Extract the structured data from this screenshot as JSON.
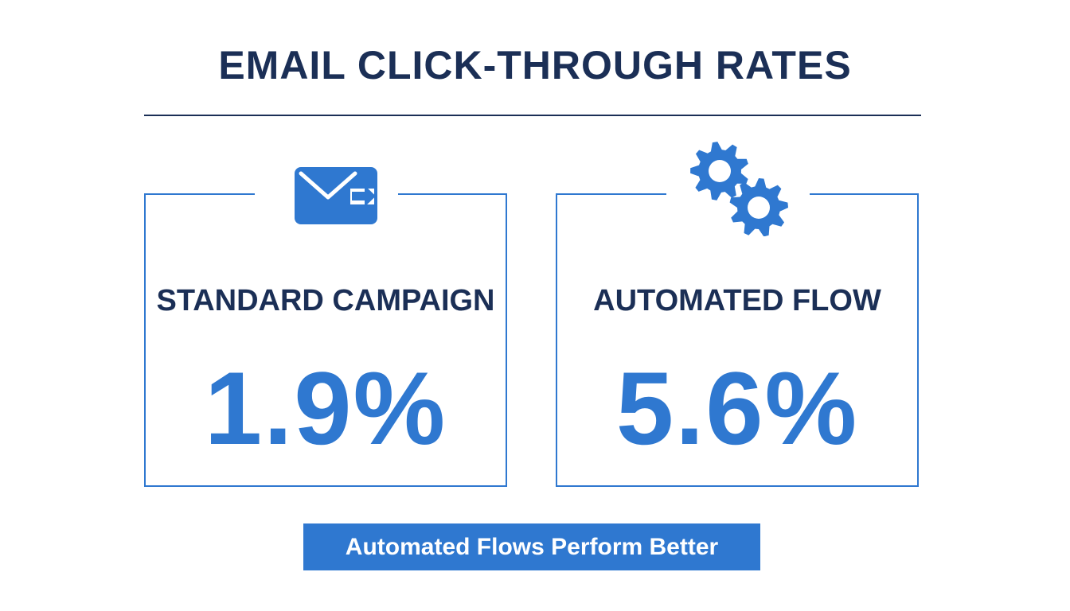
{
  "title": "EMAIL CLICK-THROUGH RATES",
  "cards": [
    {
      "label": "STANDARD CAMPAIGN",
      "value": "1.9%",
      "icon": "email-send-icon"
    },
    {
      "label": "AUTOMATED FLOW",
      "value": "5.6%",
      "icon": "gears-icon"
    }
  ],
  "banner": "Automated Flows Perform Better",
  "colors": {
    "navy": "#1b2f56",
    "accent": "#2f78d0",
    "background": "#ffffff"
  }
}
